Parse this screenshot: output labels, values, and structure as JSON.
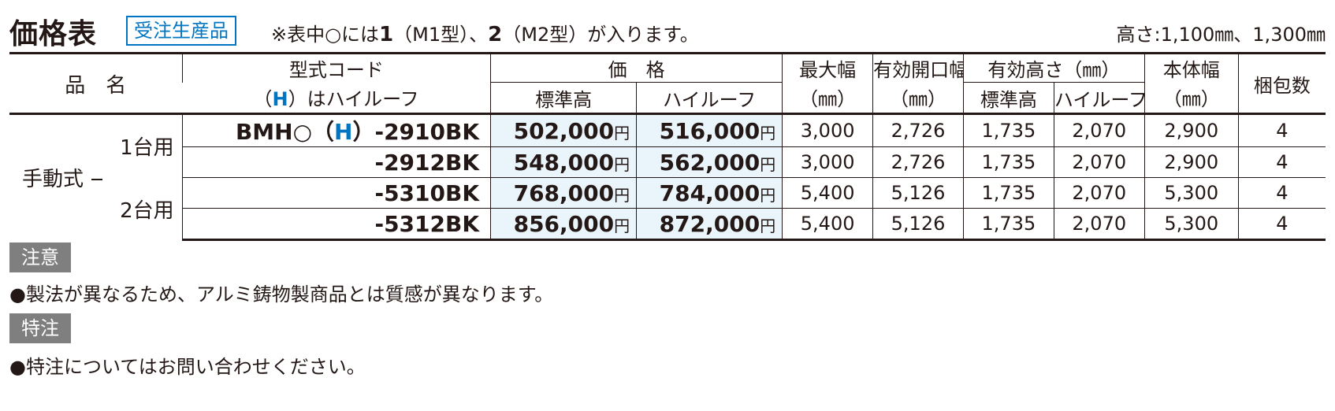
{
  "header": {
    "title": "価格表",
    "badge": "受注生産品",
    "note_prefix": "※表中○には",
    "note_num1": "1",
    "note_mid1": "（M1型）、",
    "note_num2": "2",
    "note_mid2": "（M2型）が入ります。",
    "height_info": "高さ:1,100㎜、1,300㎜"
  },
  "table": {
    "headers": {
      "product_name": "品　名",
      "model_code_line1": "型式コード",
      "model_code_line2_open": "（",
      "model_code_line2_h": "H",
      "model_code_line2_rest": "）はハイルーフ",
      "price": "価　格",
      "price_standard": "標準高",
      "price_high": "ハイルーフ",
      "max_width": "最大幅",
      "max_width_unit": "（㎜）",
      "effective_opening": "有効開口幅",
      "effective_opening_unit": "（㎜）",
      "effective_height": "有効高さ（㎜）",
      "eff_height_standard": "標準高",
      "eff_height_high": "ハイルーフ",
      "body_width": "本体幅",
      "body_width_unit": "（㎜）",
      "packages": "梱包数"
    },
    "category": "手動式",
    "groups": [
      "1台用",
      "2台用"
    ],
    "yen": "円",
    "rows": [
      {
        "model_prefix": "BMH○（",
        "model_h": "H",
        "model_suffix": "）-2910BK",
        "price_std": "502,000",
        "price_high": "516,000",
        "max_w": "3,000",
        "eff_open": "2,726",
        "eff_h_std": "1,735",
        "eff_h_high": "2,070",
        "body_w": "2,900",
        "pkg": "4"
      },
      {
        "model_prefix": "",
        "model_h": "",
        "model_suffix": "-2912BK",
        "price_std": "548,000",
        "price_high": "562,000",
        "max_w": "3,000",
        "eff_open": "2,726",
        "eff_h_std": "1,735",
        "eff_h_high": "2,070",
        "body_w": "2,900",
        "pkg": "4"
      },
      {
        "model_prefix": "",
        "model_h": "",
        "model_suffix": "-5310BK",
        "price_std": "768,000",
        "price_high": "784,000",
        "max_w": "5,400",
        "eff_open": "5,126",
        "eff_h_std": "1,735",
        "eff_h_high": "2,070",
        "body_w": "5,300",
        "pkg": "4"
      },
      {
        "model_prefix": "",
        "model_h": "",
        "model_suffix": "-5312BK",
        "price_std": "856,000",
        "price_high": "872,000",
        "max_w": "5,400",
        "eff_open": "5,126",
        "eff_h_std": "1,735",
        "eff_h_high": "2,070",
        "body_w": "5,300",
        "pkg": "4"
      }
    ]
  },
  "notes": {
    "caution_label": "注意",
    "caution_text": "●製法が異なるため、アルミ鋳物製商品とは質感が異なります。",
    "special_label": "特注",
    "special_text": "●特注についてはお問い合わせください。"
  },
  "colors": {
    "accent_blue": "#0075c2",
    "price_bg": "#eaf4fb",
    "label_gray": "#7f7f7f",
    "text": "#231815"
  }
}
